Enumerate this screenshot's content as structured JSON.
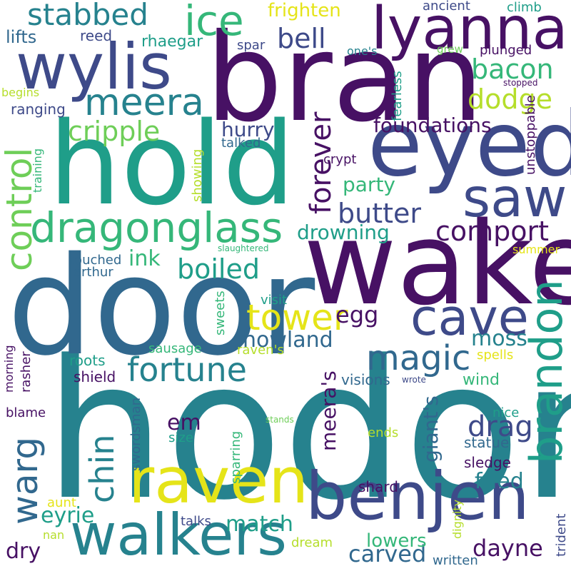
{
  "words": {
    "hodor": "hodor",
    "door": "door",
    "wake": "wake",
    "bran": "bran",
    "hold": "hold",
    "eyed": "eyed",
    "lyanna": "lyanna",
    "wylis": "wylis",
    "benjen": "benjen",
    "raven": "raven",
    "walkers": "walkers",
    "saw": "saw",
    "dragonglass": "dragonglass",
    "brandon": "brandon",
    "cave": "cave",
    "meera": "meera",
    "ice": "ice",
    "stabbed": "stabbed",
    "control": "control",
    "warg": "warg",
    "forever": "forever",
    "tower": "tower",
    "fortune": "fortune",
    "magic": "magic",
    "cripple": "cripple",
    "comport": "comport",
    "boiled": "boiled",
    "butter": "butter",
    "bacon": "bacon",
    "dodge": "dodge",
    "bell": "bell",
    "frighten": "frighten",
    "foundations": "foundations",
    "drowning": "drowning",
    "chin": "chin",
    "hurry": "hurry",
    "party": "party",
    "howland": "howland",
    "egg": "egg",
    "moss": "moss",
    "drag": "drag",
    "eyrie": "eyrie",
    "carved": "carved",
    "dayne": "dayne",
    "match": "match",
    "fried": "fried",
    "lowers": "lowers",
    "em": "em",
    "ink": "ink",
    "giants": "giant's",
    "meeras": "meera's",
    "dry": "dry",
    "lifts": "lifts",
    "reed": "reed",
    "rhaegar": "rhaegar",
    "spar": "spar",
    "ones": "one's",
    "ancient": "ancient",
    "climb": "climb",
    "grew": "grew",
    "plunged": "plunged",
    "begins": "begins",
    "ranging": "ranging",
    "fearless": "fearless",
    "stopped": "stopped",
    "unstoppable": "unstoppable",
    "training": "training",
    "talked": "talked",
    "crypt": "crypt",
    "showing": "showing",
    "touched": "touched",
    "arthur": "arthur",
    "slaughtered": "slaughtered",
    "summer": "summer",
    "visit": "visit",
    "sweets": "sweets",
    "ravens": "raven's",
    "sausage": "sausage",
    "spells": "spells",
    "wrote": "wrote",
    "visions": "visions",
    "wind": "wind",
    "roots": "roots",
    "shield": "shield",
    "morning": "morning",
    "rasher": "rasher",
    "blame": "blame",
    "stands": "stands",
    "nice": "nice",
    "size": "size",
    "swordsman": "swordsman",
    "statue": "statue",
    "ends": "ends",
    "sledge": "sledge",
    "sparring": "sparring",
    "shard": "shard",
    "dignity": "dignity",
    "trident": "trident",
    "aunt": "aunt",
    "talks": "talks",
    "nan": "nan",
    "dream": "dream",
    "written": "written"
  },
  "colors": {
    "dark_purple": "#471164",
    "purple": "#482878",
    "indigo": "#3e4a89",
    "slate_blue": "#31688e",
    "teal": "#26828e",
    "teal_green": "#1f9e89",
    "green": "#35b779",
    "light_green": "#6ece58",
    "lime": "#b5de2b",
    "yellow": "#e5e419"
  }
}
